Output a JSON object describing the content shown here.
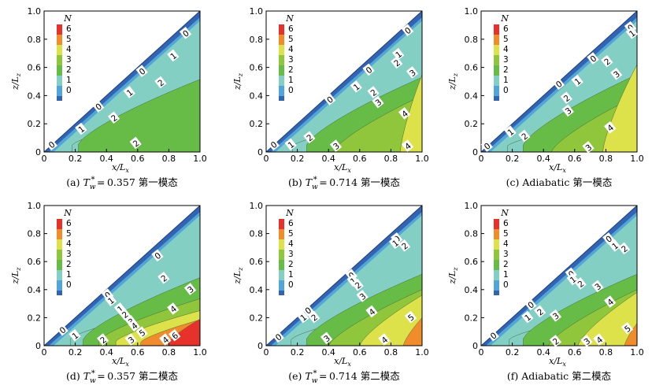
{
  "colors": {
    "0": "#3264b2",
    "1": "#52a5d8",
    "2": "#84cfc3",
    "3": "#67bb47",
    "4": "#8fc63c",
    "5": "#dde24a",
    "6": "#f08c2c",
    "7": "#e6322a",
    "outline": "#222222"
  },
  "chart_data": [
    {
      "type": "heatmap",
      "panel": "(a)",
      "caption": {
        "prefix": "(a) ",
        "T": "T",
        "sub": "w",
        "sup": "*",
        "rest": " 0.357 第一模态"
      },
      "xlabel": "x/L",
      "xlabel_sub": "x",
      "ylabel": "z/L",
      "ylabel_sub": "z",
      "xlim": [
        0,
        1
      ],
      "ylim": [
        0,
        1
      ],
      "xticks": [
        "0",
        "0.2",
        "0.4",
        "0.6",
        "0.8",
        "1.0"
      ],
      "yticks": [
        "0",
        "0.2",
        "0.4",
        "0.6",
        "0.8",
        "1.0"
      ],
      "legend": {
        "title": "N",
        "levels": [
          "6",
          "5",
          "4",
          "3",
          "2",
          "1",
          "0"
        ]
      },
      "contours": [
        {
          "level": 1,
          "x0": 0.18,
          "h": 0.05,
          "grow": 0.26
        },
        {
          "level": 2,
          "x0": 0.22,
          "h": 0.055,
          "grow": 0.46
        },
        {
          "level": 3,
          "x0": 0.36,
          "h": 0.0,
          "grow": 0.0
        }
      ],
      "contour_labels": [
        {
          "text": "0",
          "x": 0.05,
          "y": 0.05
        },
        {
          "text": "0",
          "x": 0.35,
          "y": 0.32
        },
        {
          "text": "0",
          "x": 0.63,
          "y": 0.57
        },
        {
          "text": "0",
          "x": 0.91,
          "y": 0.84
        },
        {
          "text": "1",
          "x": 0.24,
          "y": 0.16
        },
        {
          "text": "1",
          "x": 0.55,
          "y": 0.42
        },
        {
          "text": "1",
          "x": 0.83,
          "y": 0.68
        },
        {
          "text": "2",
          "x": 0.45,
          "y": 0.24
        },
        {
          "text": "2",
          "x": 0.75,
          "y": 0.49
        },
        {
          "text": "2",
          "x": 0.59,
          "y": 0.06
        }
      ]
    },
    {
      "type": "heatmap",
      "panel": "(b)",
      "caption": {
        "prefix": "(b) ",
        "T": "T",
        "sub": "w",
        "sup": "*",
        "rest": " 0.714 第一模态"
      },
      "xlabel": "x/L",
      "xlabel_sub": "x",
      "ylabel": "z/L",
      "ylabel_sub": "z",
      "xlim": [
        0,
        1
      ],
      "ylim": [
        0,
        1
      ],
      "xticks": [
        "0",
        "0.2",
        "0.4",
        "0.6",
        "0.8",
        "1.0"
      ],
      "yticks": [
        "0",
        "0.2",
        "0.4",
        "0.6",
        "0.8",
        "1.0"
      ],
      "legend": {
        "title": "N",
        "levels": [
          "6",
          "5",
          "4",
          "3",
          "2",
          "1",
          "0"
        ]
      },
      "contours": [
        {
          "level": 1,
          "x0": 0.17,
          "h": 0.045,
          "grow": 0.22
        },
        {
          "level": 2,
          "x0": 0.26,
          "h": 0.05,
          "grow": 0.48
        },
        {
          "level": 3,
          "x0": 0.43,
          "h": 0.0,
          "grow": 0.4
        },
        {
          "level": 4,
          "x0": 0.86,
          "h": 0.0,
          "grow": 0.55
        }
      ],
      "contour_labels": [
        {
          "text": "0",
          "x": 0.05,
          "y": 0.05
        },
        {
          "text": "0",
          "x": 0.41,
          "y": 0.37
        },
        {
          "text": "0",
          "x": 0.66,
          "y": 0.58
        },
        {
          "text": "0",
          "x": 0.91,
          "y": 0.86
        },
        {
          "text": "1",
          "x": 0.16,
          "y": 0.05
        },
        {
          "text": "1",
          "x": 0.58,
          "y": 0.46
        },
        {
          "text": "1",
          "x": 0.85,
          "y": 0.69
        },
        {
          "text": "2",
          "x": 0.28,
          "y": 0.1
        },
        {
          "text": "2",
          "x": 0.69,
          "y": 0.42
        },
        {
          "text": "2",
          "x": 0.84,
          "y": 0.63
        },
        {
          "text": "3",
          "x": 0.45,
          "y": 0.04
        },
        {
          "text": "3",
          "x": 0.72,
          "y": 0.35
        },
        {
          "text": "3",
          "x": 0.94,
          "y": 0.56
        },
        {
          "text": "4",
          "x": 0.89,
          "y": 0.27
        },
        {
          "text": "4",
          "x": 0.91,
          "y": 0.04
        }
      ]
    },
    {
      "type": "heatmap",
      "panel": "(c)",
      "caption": {
        "prefix": "(c) ",
        "T": "",
        "sub": "",
        "sup": "",
        "rest": "Adiabatic 第一模态"
      },
      "xlabel": "x/L",
      "xlabel_sub": "x",
      "ylabel": "z/L",
      "ylabel_sub": "z",
      "xlim": [
        0,
        1
      ],
      "ylim": [
        0,
        1
      ],
      "xticks": [
        "0",
        "0.2",
        "0.4",
        "0.6",
        "0.8",
        "1.0"
      ],
      "yticks": [
        "0",
        "0.2",
        "0.4",
        "0.6",
        "0.8",
        "1.0"
      ],
      "legend": {
        "title": "N",
        "levels": [
          "6",
          "5",
          "4",
          "3",
          "2",
          "1",
          "0"
        ]
      },
      "contours": [
        {
          "level": 1,
          "x0": 0.17,
          "h": 0.045,
          "grow": 0.22
        },
        {
          "level": 2,
          "x0": 0.27,
          "h": 0.05,
          "grow": 0.5
        },
        {
          "level": 3,
          "x0": 0.45,
          "h": 0.0,
          "grow": 0.4
        },
        {
          "level": 4,
          "x0": 0.78,
          "h": 0.0,
          "grow": 0.62
        }
      ],
      "contour_labels": [
        {
          "text": "0",
          "x": 0.04,
          "y": 0.04
        },
        {
          "text": "0",
          "x": 0.5,
          "y": 0.48
        },
        {
          "text": "0",
          "x": 0.72,
          "y": 0.66
        },
        {
          "text": "0",
          "x": 0.96,
          "y": 0.88
        },
        {
          "text": "1",
          "x": 0.19,
          "y": 0.14
        },
        {
          "text": "1",
          "x": 0.62,
          "y": 0.5
        },
        {
          "text": "1",
          "x": 0.97,
          "y": 0.84
        },
        {
          "text": "2",
          "x": 0.28,
          "y": 0.11
        },
        {
          "text": "2",
          "x": 0.55,
          "y": 0.38
        },
        {
          "text": "2",
          "x": 0.81,
          "y": 0.64
        },
        {
          "text": "3",
          "x": 0.56,
          "y": 0.29
        },
        {
          "text": "3",
          "x": 0.87,
          "y": 0.55
        },
        {
          "text": "3",
          "x": 0.69,
          "y": 0.03
        },
        {
          "text": "4",
          "x": 0.83,
          "y": 0.17
        }
      ]
    },
    {
      "type": "heatmap",
      "panel": "(d)",
      "caption": {
        "prefix": "(d) ",
        "T": "T",
        "sub": "w",
        "sup": "*",
        "rest": " 0.357 第二模态"
      },
      "xlabel": "x/L",
      "xlabel_sub": "x",
      "ylabel": "z/L",
      "ylabel_sub": "z",
      "xlim": [
        0,
        1
      ],
      "ylim": [
        0,
        1
      ],
      "xticks": [
        "0",
        "0.2",
        "0.4",
        "0.6",
        "0.8",
        "1.0"
      ],
      "yticks": [
        "0",
        "0.2",
        "0.4",
        "0.6",
        "0.8",
        "1.0"
      ],
      "legend": {
        "title": "N",
        "levels": [
          "6",
          "5",
          "4",
          "3",
          "2",
          "1",
          "0"
        ]
      },
      "contours": [
        {
          "level": 1,
          "x0": 0.17,
          "h": 0.05,
          "grow": 0.26
        },
        {
          "level": 2,
          "x0": 0.25,
          "h": 0.045,
          "grow": 0.44
        },
        {
          "level": 3,
          "x0": 0.35,
          "h": 0.035,
          "grow": 0.3
        },
        {
          "level": 4,
          "x0": 0.46,
          "h": 0.03,
          "grow": 0.22
        },
        {
          "level": 5,
          "x0": 0.62,
          "h": 0.025,
          "grow": 0.16
        },
        {
          "level": 6,
          "x0": 0.8,
          "h": 0.02,
          "grow": 0.17
        }
      ],
      "contour_labels": [
        {
          "text": "0",
          "x": 0.12,
          "y": 0.11
        },
        {
          "text": "0",
          "x": 0.41,
          "y": 0.36
        },
        {
          "text": "0",
          "x": 0.73,
          "y": 0.64
        },
        {
          "text": "1",
          "x": 0.2,
          "y": 0.07
        },
        {
          "text": "1",
          "x": 0.43,
          "y": 0.32
        },
        {
          "text": "1",
          "x": 0.49,
          "y": 0.26
        },
        {
          "text": "2",
          "x": 0.77,
          "y": 0.48
        },
        {
          "text": "2",
          "x": 0.52,
          "y": 0.22
        },
        {
          "text": "2",
          "x": 0.38,
          "y": 0.04
        },
        {
          "text": "3",
          "x": 0.94,
          "y": 0.4
        },
        {
          "text": "3",
          "x": 0.56,
          "y": 0.17
        },
        {
          "text": "3",
          "x": 0.56,
          "y": 0.04
        },
        {
          "text": "4",
          "x": 0.83,
          "y": 0.26
        },
        {
          "text": "4",
          "x": 0.58,
          "y": 0.14
        },
        {
          "text": "4",
          "x": 0.78,
          "y": 0.04
        },
        {
          "text": "5",
          "x": 0.63,
          "y": 0.09
        },
        {
          "text": "6",
          "x": 0.84,
          "y": 0.07
        }
      ]
    },
    {
      "type": "heatmap",
      "panel": "(e)",
      "caption": {
        "prefix": "(e) ",
        "T": "T",
        "sub": "w",
        "sup": "*",
        "rest": " 0.714 第二模态"
      },
      "xlabel": "x/L",
      "xlabel_sub": "x",
      "ylabel": "z/L",
      "ylabel_sub": "z",
      "xlim": [
        0,
        1
      ],
      "ylim": [
        0,
        1
      ],
      "xticks": [
        "0",
        "0.2",
        "0.4",
        "0.6",
        "0.8",
        "1.0"
      ],
      "yticks": [
        "0",
        "0.2",
        "0.4",
        "0.6",
        "0.8",
        "1.0"
      ],
      "legend": {
        "title": "N",
        "levels": [
          "6",
          "5",
          "4",
          "3",
          "2",
          "1",
          "0"
        ]
      },
      "contours": [
        {
          "level": 1,
          "x0": 0.16,
          "h": 0.045,
          "grow": 0.26
        },
        {
          "level": 2,
          "x0": 0.26,
          "h": 0.05,
          "grow": 0.46
        },
        {
          "level": 3,
          "x0": 0.4,
          "h": 0.0,
          "grow": 0.4
        },
        {
          "level": 4,
          "x0": 0.6,
          "h": 0.0,
          "grow": 0.36
        },
        {
          "level": 5,
          "x0": 0.88,
          "h": 0.0,
          "grow": 0.2
        }
      ],
      "contour_labels": [
        {
          "text": "0",
          "x": 0.08,
          "y": 0.06
        },
        {
          "text": "0",
          "x": 0.27,
          "y": 0.25
        },
        {
          "text": "0",
          "x": 0.55,
          "y": 0.5
        },
        {
          "text": "0",
          "x": 0.84,
          "y": 0.76
        },
        {
          "text": "1",
          "x": 0.24,
          "y": 0.2
        },
        {
          "text": "1",
          "x": 0.56,
          "y": 0.46
        },
        {
          "text": "1",
          "x": 0.83,
          "y": 0.73
        },
        {
          "text": "2",
          "x": 0.31,
          "y": 0.2
        },
        {
          "text": "2",
          "x": 0.59,
          "y": 0.43
        },
        {
          "text": "2",
          "x": 0.89,
          "y": 0.71
        },
        {
          "text": "3",
          "x": 0.62,
          "y": 0.35
        },
        {
          "text": "3",
          "x": 0.39,
          "y": 0.05
        },
        {
          "text": "4",
          "x": 0.68,
          "y": 0.24
        },
        {
          "text": "4",
          "x": 0.76,
          "y": 0.04
        },
        {
          "text": "5",
          "x": 0.93,
          "y": 0.2
        }
      ]
    },
    {
      "type": "heatmap",
      "panel": "(f)",
      "caption": {
        "prefix": "(f) ",
        "T": "",
        "sub": "",
        "sup": "",
        "rest": "Adiabatic 第二模态"
      },
      "xlabel": "x/L",
      "xlabel_sub": "x",
      "ylabel": "z/L",
      "ylabel_sub": "z",
      "xlim": [
        0,
        1
      ],
      "ylim": [
        0,
        1
      ],
      "xticks": [
        "0",
        "0.2",
        "0.4",
        "0.6",
        "0.8",
        "1.0"
      ],
      "yticks": [
        "0",
        "0.2",
        "0.4",
        "0.6",
        "0.8",
        "1.0"
      ],
      "legend": {
        "title": "N",
        "levels": [
          "6",
          "5",
          "4",
          "3",
          "2",
          "1",
          "0"
        ]
      },
      "contours": [
        {
          "level": 1,
          "x0": 0.18,
          "h": 0.045,
          "grow": 0.24
        },
        {
          "level": 2,
          "x0": 0.27,
          "h": 0.05,
          "grow": 0.46
        },
        {
          "level": 3,
          "x0": 0.43,
          "h": 0.0,
          "grow": 0.4
        },
        {
          "level": 4,
          "x0": 0.62,
          "h": 0.0,
          "grow": 0.38
        },
        {
          "level": 5,
          "x0": 0.92,
          "h": 0.0,
          "grow": 0.16
        }
      ],
      "contour_labels": [
        {
          "text": "0",
          "x": 0.08,
          "y": 0.07
        },
        {
          "text": "0",
          "x": 0.32,
          "y": 0.29
        },
        {
          "text": "0",
          "x": 0.58,
          "y": 0.51
        },
        {
          "text": "0",
          "x": 0.82,
          "y": 0.76
        },
        {
          "text": "1",
          "x": 0.3,
          "y": 0.2
        },
        {
          "text": "1",
          "x": 0.59,
          "y": 0.47
        },
        {
          "text": "1",
          "x": 0.86,
          "y": 0.71
        },
        {
          "text": "2",
          "x": 0.38,
          "y": 0.24
        },
        {
          "text": "2",
          "x": 0.64,
          "y": 0.44
        },
        {
          "text": "2",
          "x": 0.92,
          "y": 0.69
        },
        {
          "text": "2",
          "x": 0.48,
          "y": 0.03
        },
        {
          "text": "3",
          "x": 0.48,
          "y": 0.21
        },
        {
          "text": "3",
          "x": 0.75,
          "y": 0.42
        },
        {
          "text": "3",
          "x": 0.68,
          "y": 0.03
        },
        {
          "text": "4",
          "x": 0.83,
          "y": 0.31
        },
        {
          "text": "4",
          "x": 0.76,
          "y": 0.04
        },
        {
          "text": "5",
          "x": 0.94,
          "y": 0.12
        }
      ]
    }
  ]
}
